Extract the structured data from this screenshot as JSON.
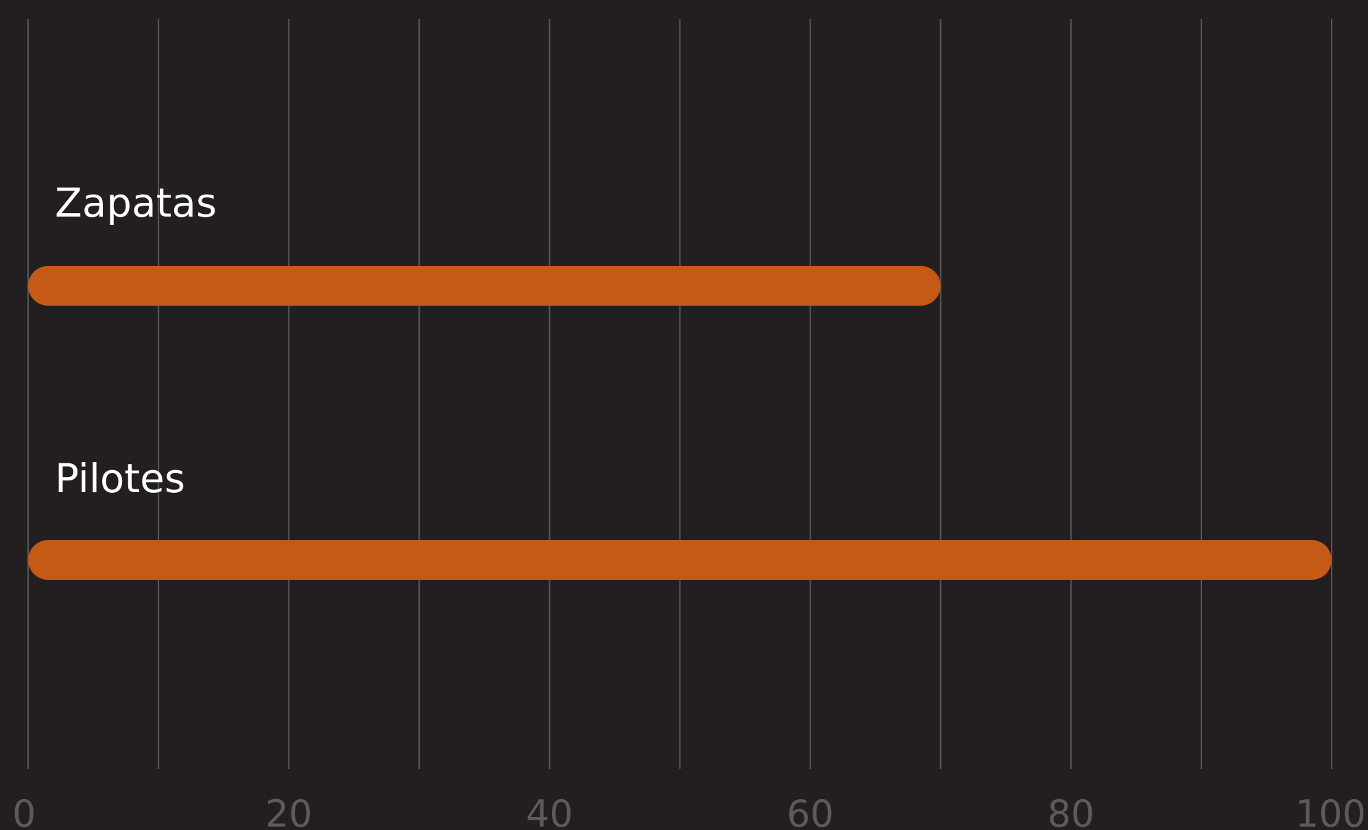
{
  "chart_data": {
    "type": "bar",
    "orientation": "horizontal",
    "categories": [
      "Zapatas",
      "Pilotes"
    ],
    "values": [
      70,
      100
    ],
    "title": "",
    "xlabel": "",
    "ylabel": "",
    "xlim": [
      0,
      100
    ],
    "x_ticks": [
      "0",
      "20",
      "40",
      "60",
      "80",
      "100"
    ],
    "x_tick_values": [
      0,
      20,
      40,
      60,
      80,
      100
    ],
    "grid_step": 10,
    "grid": true,
    "legend": "none",
    "colors": {
      "background": "#231f20",
      "bar": "#c55a17",
      "grid": "#5a5657",
      "tick_text": "#5e5a5b",
      "label_text": "#ffffff"
    }
  }
}
